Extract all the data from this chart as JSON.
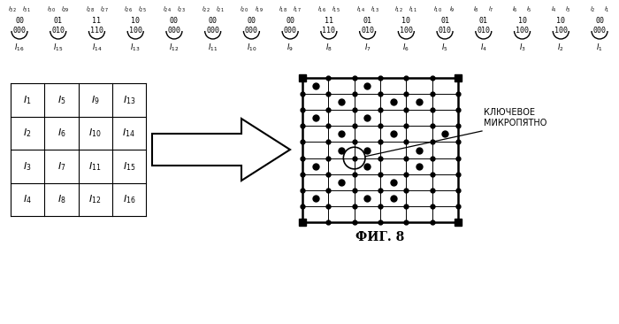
{
  "fig_width": 7.0,
  "fig_height": 3.66,
  "dpi": 100,
  "bg_color": "#ffffff",
  "top_row2": [
    "00",
    "01",
    "11",
    "10",
    "00",
    "00",
    "00",
    "00",
    "11",
    "01",
    "10",
    "01",
    "01",
    "10",
    "10",
    "00"
  ],
  "top_row3": [
    "000",
    "010",
    "110",
    "100",
    "000",
    "000",
    "000",
    "000",
    "110",
    "010",
    "100",
    "010",
    "010",
    "100",
    "100",
    "000"
  ],
  "bottom_labels_I": [
    "I_{16}",
    "I_{15}",
    "I_{14}",
    "I_{13}",
    "I_{12}",
    "I_{11}",
    "I_{10}",
    "I_{9}",
    "I_{8}",
    "I_{7}",
    "I_{6}",
    "I_{5}",
    "I_{4}",
    "I_{3}",
    "I_{2}",
    "I_{1}"
  ],
  "grid_left_labels": [
    [
      "I_1",
      "I_5",
      "I_9",
      "I_{13}"
    ],
    [
      "I_2",
      "I_6",
      "I_{10}",
      "I_{14}"
    ],
    [
      "I_3",
      "I_7",
      "I_{11}",
      "I_{15}"
    ],
    [
      "I_4",
      "I_8",
      "I_{12}",
      "I_{16}"
    ]
  ],
  "annotation_text": "КЛЮЧЕВОЕ\nМИКРОПЯТНО",
  "fig_label": "ФИГ. 8"
}
